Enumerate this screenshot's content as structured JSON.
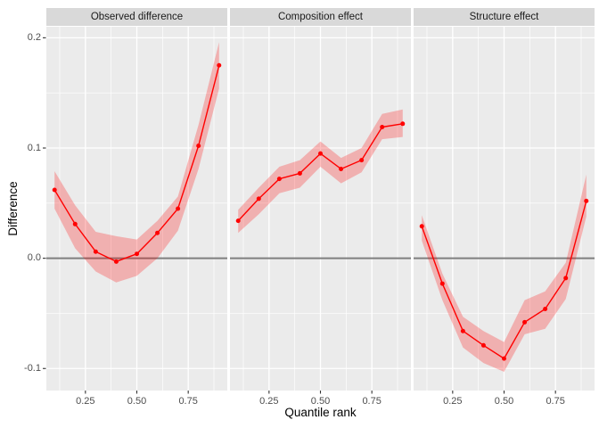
{
  "colors": {
    "figure_background": "#FFFFFF",
    "panel_background": "#EBEBEB",
    "strip_background": "#D9D9D9",
    "strip_text": "#1A1A1A",
    "grid": "#FFFFFF",
    "axis_text": "#4D4D4D",
    "axis_title": "#000000",
    "tick_mark": "#333333",
    "series": "#FF0000",
    "ribbon": "#FF0000",
    "ribbon_opacity": 0.25,
    "zero_line": "#7F7F7F"
  },
  "chart_data": {
    "type": "line",
    "title": "",
    "xlabel": "Quantile rank",
    "ylabel": "Difference",
    "legend": "none",
    "grid": true,
    "xlim": [
      0.06,
      0.94
    ],
    "ylim": [
      -0.12,
      0.21
    ],
    "zero_line": 0,
    "x": [
      0.1,
      0.2,
      0.3,
      0.4,
      0.5,
      0.6,
      0.7,
      0.8,
      0.9
    ],
    "x_ticks": {
      "values": [
        0.25,
        0.5,
        0.75
      ],
      "labels": [
        "0.25",
        "0.50",
        "0.75"
      ]
    },
    "y_ticks": {
      "values": [
        0.2,
        0.1,
        0.0,
        -0.1
      ],
      "labels": [
        "0.2",
        "0.1",
        "0.0",
        "-0.1"
      ]
    },
    "x_minor": [
      0.125,
      0.375,
      0.625,
      0.875
    ],
    "y_minor": [
      0.15,
      0.05,
      -0.05
    ],
    "facets": [
      {
        "label": "Observed difference",
        "y": [
          0.062,
          0.031,
          0.006,
          -0.003,
          0.004,
          0.023,
          0.045,
          0.102,
          0.175
        ],
        "ymin": [
          0.045,
          0.009,
          -0.012,
          -0.022,
          -0.016,
          0.0,
          0.025,
          0.081,
          0.154
        ],
        "ymax": [
          0.079,
          0.048,
          0.024,
          0.02,
          0.017,
          0.034,
          0.056,
          0.121,
          0.196
        ]
      },
      {
        "label": "Composition effect",
        "y": [
          0.034,
          0.054,
          0.072,
          0.077,
          0.095,
          0.081,
          0.089,
          0.119,
          0.122
        ],
        "ymin": [
          0.023,
          0.04,
          0.059,
          0.064,
          0.083,
          0.068,
          0.078,
          0.108,
          0.11
        ],
        "ymax": [
          0.044,
          0.064,
          0.083,
          0.089,
          0.106,
          0.091,
          0.1,
          0.131,
          0.135
        ]
      },
      {
        "label": "Structure effect",
        "y": [
          0.029,
          -0.023,
          -0.066,
          -0.079,
          -0.091,
          -0.058,
          -0.046,
          -0.018,
          0.052
        ],
        "ymin": [
          0.016,
          -0.038,
          -0.081,
          -0.095,
          -0.103,
          -0.069,
          -0.064,
          -0.037,
          0.038
        ],
        "ymax": [
          0.039,
          -0.014,
          -0.053,
          -0.066,
          -0.076,
          -0.038,
          -0.03,
          -0.004,
          0.076
        ]
      }
    ]
  }
}
